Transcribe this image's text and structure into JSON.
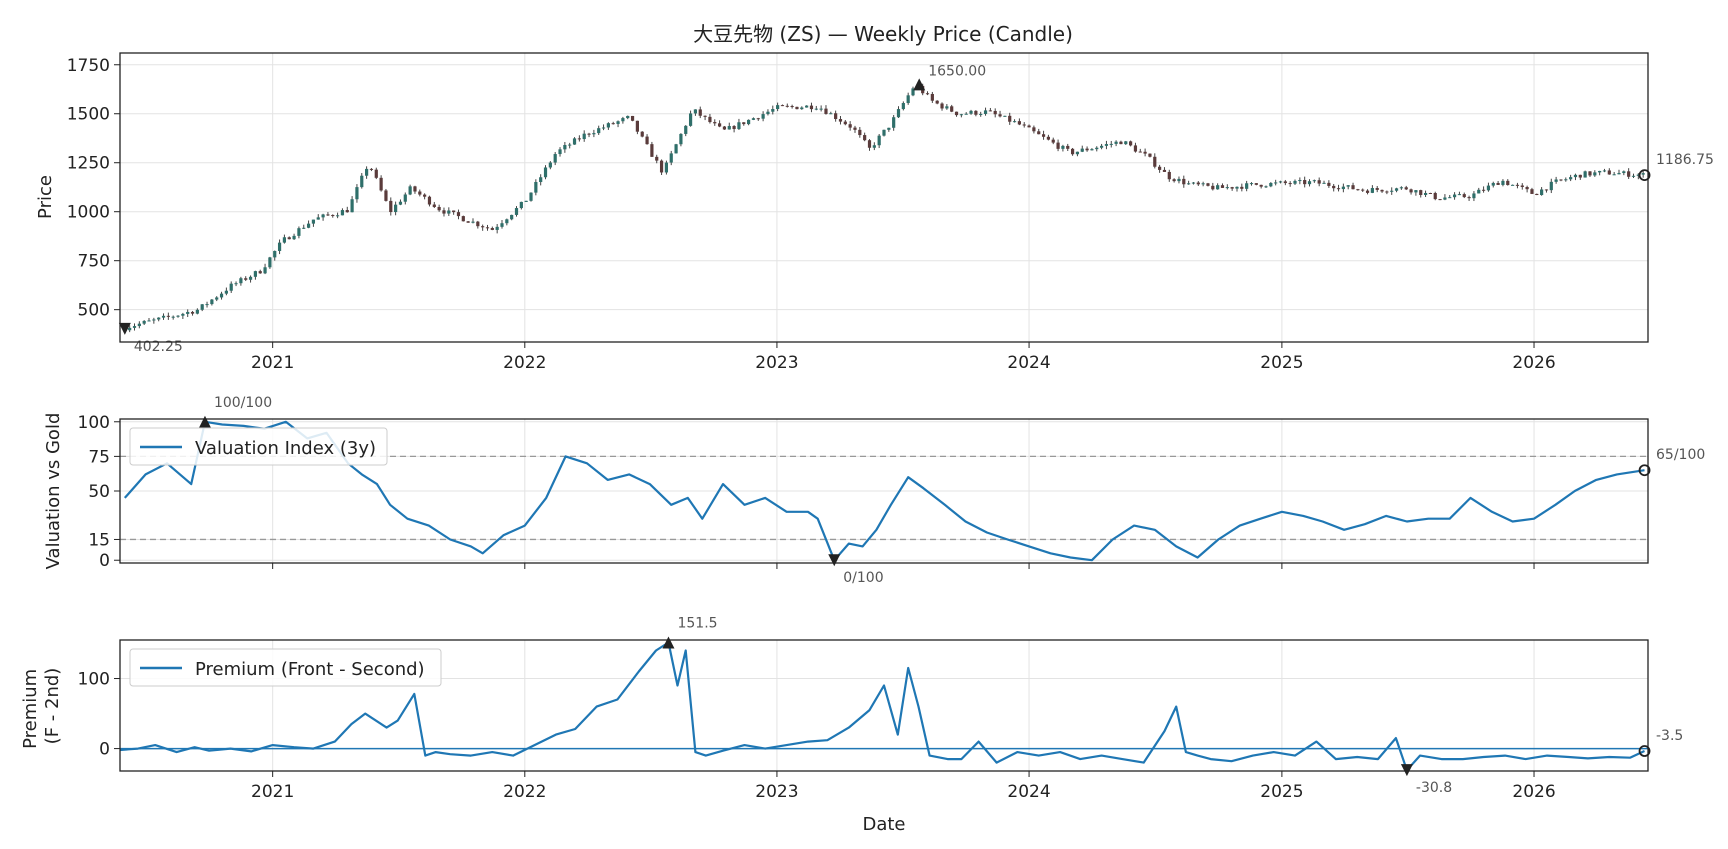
{
  "chart_data": [
    {
      "type": "candlestick",
      "title": "大豆先物 (ZS) — Weekly Price (Candle)",
      "xlabel": "",
      "ylabel": "Price",
      "ylim": [
        335,
        1810
      ],
      "yticks": [
        500,
        750,
        1000,
        1250,
        1500,
        1750
      ],
      "xticks": [
        "2021",
        "2022",
        "2023",
        "2024",
        "2025",
        "2026"
      ],
      "xlim": [
        "2020-05-25",
        "2026-06-15"
      ],
      "grid": true,
      "series_anchors": {
        "x": [
          "2020-06-01",
          "2020-08-01",
          "2020-09-15",
          "2020-11-01",
          "2020-12-15",
          "2021-01-15",
          "2021-03-01",
          "2021-04-20",
          "2021-05-20",
          "2021-06-20",
          "2021-07-20",
          "2021-09-01",
          "2021-10-15",
          "2021-11-15",
          "2022-01-01",
          "2022-02-15",
          "2022-04-01",
          "2022-06-01",
          "2022-07-20",
          "2022-09-01",
          "2022-10-15",
          "2023-01-01",
          "2023-03-01",
          "2023-04-20",
          "2023-05-15",
          "2023-06-15",
          "2023-07-20",
          "2023-08-15",
          "2023-09-20",
          "2023-11-01",
          "2023-12-15",
          "2024-01-20",
          "2024-03-01",
          "2024-05-15",
          "2024-06-20",
          "2024-07-20",
          "2024-08-20",
          "2024-10-01",
          "2024-12-01",
          "2025-02-15",
          "2025-05-01",
          "2025-07-01",
          "2025-08-15",
          "2025-10-01",
          "2025-11-15",
          "2026-01-01",
          "2026-02-01",
          "2026-03-10",
          "2026-04-15",
          "2026-06-10"
        ],
        "close": [
          410,
          460,
          500,
          620,
          700,
          850,
          960,
          1010,
          1250,
          1000,
          1120,
          1010,
          950,
          910,
          1050,
          1300,
          1400,
          1480,
          1200,
          1520,
          1410,
          1530,
          1540,
          1430,
          1320,
          1450,
          1650,
          1560,
          1500,
          1510,
          1450,
          1380,
          1300,
          1360,
          1280,
          1180,
          1140,
          1120,
          1140,
          1150,
          1110,
          1120,
          1070,
          1080,
          1160,
          1090,
          1150,
          1190,
          1200,
          1186.75
        ]
      },
      "annotations": [
        {
          "label": "1650.00",
          "x": "2023-07-26",
          "y": 1650,
          "kind": "max"
        },
        {
          "label": "402.25",
          "x": "2020-06-01",
          "y": 402.25,
          "kind": "min"
        },
        {
          "label": "1186.75",
          "x": "2026-06-10",
          "y": 1186.75,
          "kind": "last"
        }
      ]
    },
    {
      "type": "line",
      "xlabel": "",
      "ylabel": "Valuation vs Gold",
      "ylim": [
        -2,
        102
      ],
      "yticks": [
        0,
        15,
        50,
        75,
        100
      ],
      "hlines": [
        15,
        75
      ],
      "legend": "top-left",
      "series": [
        {
          "name": "Valuation Index (3y)",
          "color": "#1f77b4",
          "x": [
            "2020-06-01",
            "2020-07-01",
            "2020-08-01",
            "2020-09-05",
            "2020-09-25",
            "2020-10-20",
            "2020-11-20",
            "2020-12-20",
            "2021-01-20",
            "2021-02-20",
            "2021-03-20",
            "2021-04-20",
            "2021-05-10",
            "2021-06-01",
            "2021-06-20",
            "2021-07-15",
            "2021-08-15",
            "2021-09-15",
            "2021-10-15",
            "2021-11-01",
            "2021-12-01",
            "2022-01-01",
            "2022-02-01",
            "2022-03-01",
            "2022-04-01",
            "2022-05-01",
            "2022-06-01",
            "2022-07-01",
            "2022-08-01",
            "2022-08-25",
            "2022-09-15",
            "2022-10-15",
            "2022-11-15",
            "2022-12-15",
            "2023-01-15",
            "2023-02-15",
            "2023-03-01",
            "2023-03-25",
            "2023-04-15",
            "2023-05-05",
            "2023-05-25",
            "2023-06-15",
            "2023-07-10",
            "2023-08-01",
            "2023-09-01",
            "2023-10-01",
            "2023-11-01",
            "2023-12-01",
            "2024-01-01",
            "2024-02-01",
            "2024-03-01",
            "2024-04-01",
            "2024-05-01",
            "2024-06-01",
            "2024-07-01",
            "2024-08-01",
            "2024-09-01",
            "2024-10-01",
            "2024-11-01",
            "2024-12-01",
            "2025-01-01",
            "2025-02-01",
            "2025-03-01",
            "2025-04-01",
            "2025-05-01",
            "2025-06-01",
            "2025-07-01",
            "2025-08-01",
            "2025-09-01",
            "2025-10-01",
            "2025-11-01",
            "2025-12-01",
            "2026-01-01",
            "2026-02-01",
            "2026-03-01",
            "2026-04-01",
            "2026-05-01",
            "2026-06-10"
          ],
          "values": [
            45,
            62,
            70,
            55,
            100,
            98,
            97,
            95,
            100,
            88,
            92,
            70,
            62,
            55,
            40,
            30,
            25,
            15,
            10,
            5,
            18,
            25,
            45,
            75,
            70,
            58,
            62,
            55,
            40,
            45,
            30,
            55,
            40,
            45,
            35,
            35,
            30,
            0,
            12,
            10,
            22,
            40,
            60,
            52,
            40,
            28,
            20,
            15,
            10,
            5,
            2,
            0,
            15,
            25,
            22,
            10,
            2,
            15,
            25,
            30,
            35,
            32,
            28,
            22,
            26,
            32,
            28,
            30,
            30,
            45,
            35,
            28,
            30,
            40,
            50,
            58,
            62,
            65
          ]
        }
      ],
      "annotations": [
        {
          "label": "100/100",
          "x": "2020-09-25",
          "y": 100,
          "kind": "max"
        },
        {
          "label": "0/100",
          "x": "2023-03-25",
          "y": 0,
          "kind": "min"
        },
        {
          "label": "65/100",
          "x": "2026-06-10",
          "y": 65,
          "kind": "last"
        }
      ]
    },
    {
      "type": "line",
      "xlabel": "Date",
      "ylabel": "Premium\n(F - 2nd)",
      "ylim": [
        -32,
        155
      ],
      "yticks": [
        0,
        100
      ],
      "hlines": [
        0
      ],
      "legend": "top-left",
      "series": [
        {
          "name": "Premium (Front - Second)",
          "color": "#1f77b4",
          "x": [
            "2020-05-25",
            "2020-06-20",
            "2020-07-15",
            "2020-08-15",
            "2020-09-10",
            "2020-10-01",
            "2020-11-01",
            "2020-12-01",
            "2021-01-01",
            "2021-02-01",
            "2021-03-01",
            "2021-04-01",
            "2021-04-25",
            "2021-05-15",
            "2021-06-15",
            "2021-07-01",
            "2021-07-25",
            "2021-08-10",
            "2021-08-25",
            "2021-09-15",
            "2021-10-15",
            "2021-11-15",
            "2021-12-15",
            "2022-01-15",
            "2022-02-15",
            "2022-03-15",
            "2022-04-15",
            "2022-05-15",
            "2022-06-15",
            "2022-07-10",
            "2022-07-28",
            "2022-08-10",
            "2022-08-22",
            "2022-09-05",
            "2022-09-20",
            "2022-10-15",
            "2022-11-15",
            "2022-12-15",
            "2023-01-15",
            "2023-02-15",
            "2023-03-15",
            "2023-04-15",
            "2023-05-15",
            "2023-06-05",
            "2023-06-25",
            "2023-07-10",
            "2023-07-25",
            "2023-08-10",
            "2023-09-05",
            "2023-09-25",
            "2023-10-20",
            "2023-11-15",
            "2023-12-15",
            "2024-01-15",
            "2024-02-15",
            "2024-03-15",
            "2024-04-15",
            "2024-05-15",
            "2024-06-15",
            "2024-07-15",
            "2024-08-01",
            "2024-08-15",
            "2024-09-01",
            "2024-09-20",
            "2024-10-20",
            "2024-11-20",
            "2024-12-20",
            "2025-01-20",
            "2025-02-20",
            "2025-03-20",
            "2025-04-20",
            "2025-05-20",
            "2025-06-15",
            "2025-07-01",
            "2025-07-20",
            "2025-08-20",
            "2025-09-20",
            "2025-10-20",
            "2025-11-20",
            "2025-12-20",
            "2026-01-20",
            "2026-02-20",
            "2026-03-20",
            "2026-04-20",
            "2026-05-20",
            "2026-06-10"
          ],
          "values": [
            -2,
            0,
            5,
            -5,
            2,
            -3,
            0,
            -4,
            5,
            2,
            0,
            10,
            35,
            50,
            30,
            40,
            78,
            -10,
            -5,
            -8,
            -10,
            -5,
            -10,
            5,
            20,
            28,
            60,
            70,
            110,
            140,
            151.5,
            90,
            140,
            -5,
            -10,
            -3,
            5,
            0,
            5,
            10,
            12,
            30,
            55,
            90,
            20,
            115,
            60,
            -10,
            -15,
            -15,
            10,
            -20,
            -5,
            -10,
            -5,
            -15,
            -10,
            -15,
            -20,
            25,
            60,
            -5,
            -10,
            -15,
            -18,
            -10,
            -5,
            -10,
            10,
            -15,
            -12,
            -15,
            15,
            -30.8,
            -10,
            -15,
            -15,
            -12,
            -10,
            -15,
            -10,
            -12,
            -14,
            -12,
            -13,
            -3.5
          ]
        }
      ],
      "annotations": [
        {
          "label": "151.5",
          "x": "2022-07-28",
          "y": 151.5,
          "kind": "max"
        },
        {
          "label": "-30.8",
          "x": "2025-07-01",
          "y": -30.8,
          "kind": "min"
        },
        {
          "label": "-3.5",
          "x": "2026-06-10",
          "y": -3.5,
          "kind": "last"
        }
      ]
    }
  ]
}
